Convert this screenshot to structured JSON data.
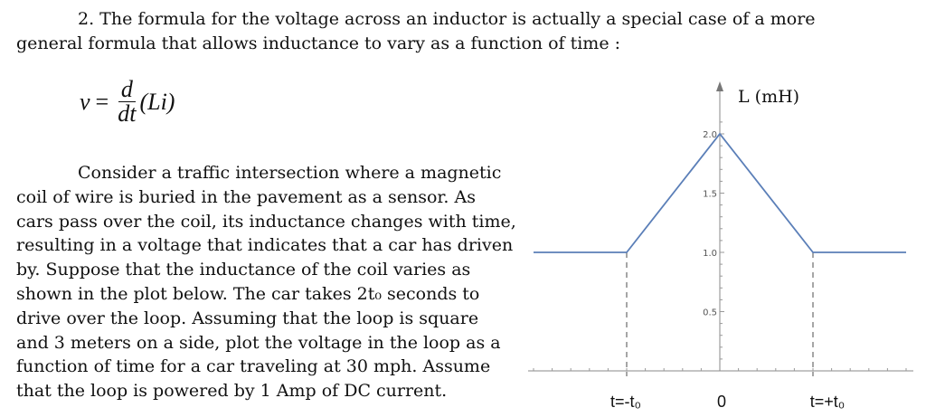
{
  "question": {
    "line1": "2. The formula for the voltage across an inductor is actually a special case of a more",
    "line2": "general formula that allows inductance to vary as a function of time :"
  },
  "equation": {
    "lhs": "v",
    "eq": "=",
    "num": "d",
    "den": "dt",
    "arg": "(Li)"
  },
  "body": [
    "Consider a traffic intersection where a magnetic",
    "coil of wire is buried in the pavement as a sensor. As",
    "cars pass over the coil, its inductance changes with time,",
    "resulting in a voltage that indicates that a car has driven",
    "by. Suppose that the inductance of the coil varies as",
    "shown in the plot below. The car takes 2t₀ seconds to",
    "drive over the loop. Assuming that the loop is square",
    "and 3 meters on a side, plot the voltage in the loop as a",
    "function of time for a car traveling at 30 mph. Assume",
    "that the loop is powered by 1 Amp of DC current."
  ],
  "chart_data": {
    "type": "line",
    "ylabel": "L (mH)",
    "x_tick_labels": [
      "t=-t₀",
      "0",
      "t=+t₀"
    ],
    "x_unit": "t₀",
    "y_ticks": [
      "0.5",
      "1.0",
      "1.5",
      "2.0"
    ],
    "ylim": [
      0,
      2.2
    ],
    "xlim": [
      -2,
      2
    ],
    "series": [
      {
        "x": [
          -2,
          -1,
          0,
          1,
          2
        ],
        "y": [
          1.0,
          1.0,
          2.0,
          1.0,
          1.0
        ]
      }
    ],
    "line_color": "#5b7fb8",
    "dashed_guides_at": [
      -1,
      1
    ],
    "grid": false
  }
}
